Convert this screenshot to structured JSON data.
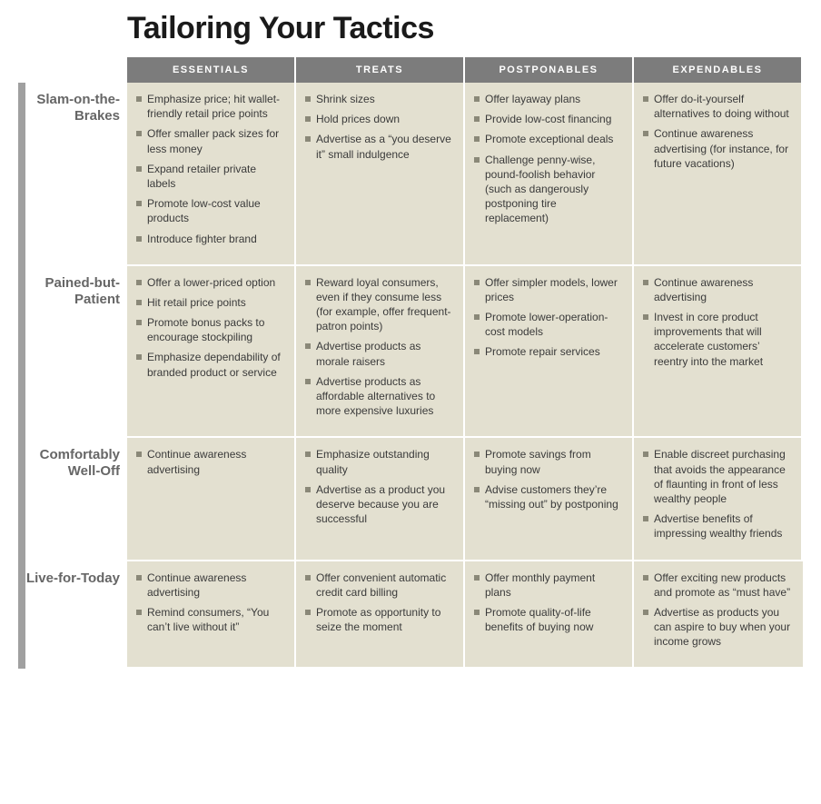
{
  "title": "Tailoring Your Tactics",
  "columns": [
    "ESSENTIALS",
    "TREATS",
    "POSTPONABLES",
    "EXPENDABLES"
  ],
  "rows": [
    {
      "label": "Slam-on-the-Brakes",
      "cells": [
        [
          "Emphasize price; hit wallet-friendly retail price points",
          "Offer smaller pack sizes for less money",
          "Expand retailer private labels",
          "Promote low-cost value products",
          "Introduce fighter brand"
        ],
        [
          "Shrink sizes",
          "Hold prices down",
          "Advertise as a “you deserve it” small indulgence"
        ],
        [
          "Offer layaway plans",
          "Provide low-cost financing",
          "Promote exceptional deals",
          "Challenge penny-wise, pound-foolish behavior (such as dangerously postpon­ing tire replacement)"
        ],
        [
          "Offer do-it-yourself alternatives to doing without",
          "Continue aware­ness advertising (for instance, for future vacations)"
        ]
      ]
    },
    {
      "label": "Pained-but-Patient",
      "cells": [
        [
          "Offer a lower-priced option",
          "Hit retail price points",
          "Promote bonus packs to encourage stockpiling",
          "Emphasize depend­ability of branded product or service"
        ],
        [
          "Reward loyal con­sumers, even if they consume less (for ex­ample, offer frequent-patron points)",
          "Advertise products as morale raisers",
          "Advertise products as affordable alterna­tives to more expen­sive luxuries"
        ],
        [
          "Offer simpler models, lower prices",
          "Promote lower-operation-cost models",
          "Promote repair services"
        ],
        [
          "Continue awareness advertising",
          "Invest in core product improvements that will accelerate cus­tomers’ reentry into the market"
        ]
      ]
    },
    {
      "label": "Comfortably Well-Off",
      "cells": [
        [
          "Continue awareness advertising"
        ],
        [
          "Emphasize outstand­ing quality",
          "Advertise as a product you deserve because you are successful"
        ],
        [
          "Promote savings from buying now",
          "Advise customers they’re “missing out” by postponing"
        ],
        [
          "Enable discreet pur­chasing that avoids the appearance of flaunting in front of less wealthy people",
          "Advertise benefits of impressing wealthy friends"
        ]
      ]
    },
    {
      "label": "Live-for-Today",
      "cells": [
        [
          "Continue awareness advertising",
          "Remind consum­ers, “You can’t live without it”"
        ],
        [
          "Offer convenient automatic credit card billing",
          "Promote as op­portunity to seize the moment"
        ],
        [
          "Offer monthly payment plans",
          "Promote quality-of-life benefits of buying now"
        ],
        [
          "Offer exciting new products and pro­mote as “must have”",
          "Advertise as products you can aspire to buy when your income grows"
        ]
      ]
    }
  ],
  "style": {
    "header_bg": "#7c7c7c",
    "header_text": "#ffffff",
    "cell_bg": "#e3e0d0",
    "row_label_color": "#666666",
    "row_bar_color": "#a0a0a0",
    "bullet_color": "#8a8878",
    "title_color": "#1a1a1a",
    "body_text": "#3a3a3a"
  }
}
